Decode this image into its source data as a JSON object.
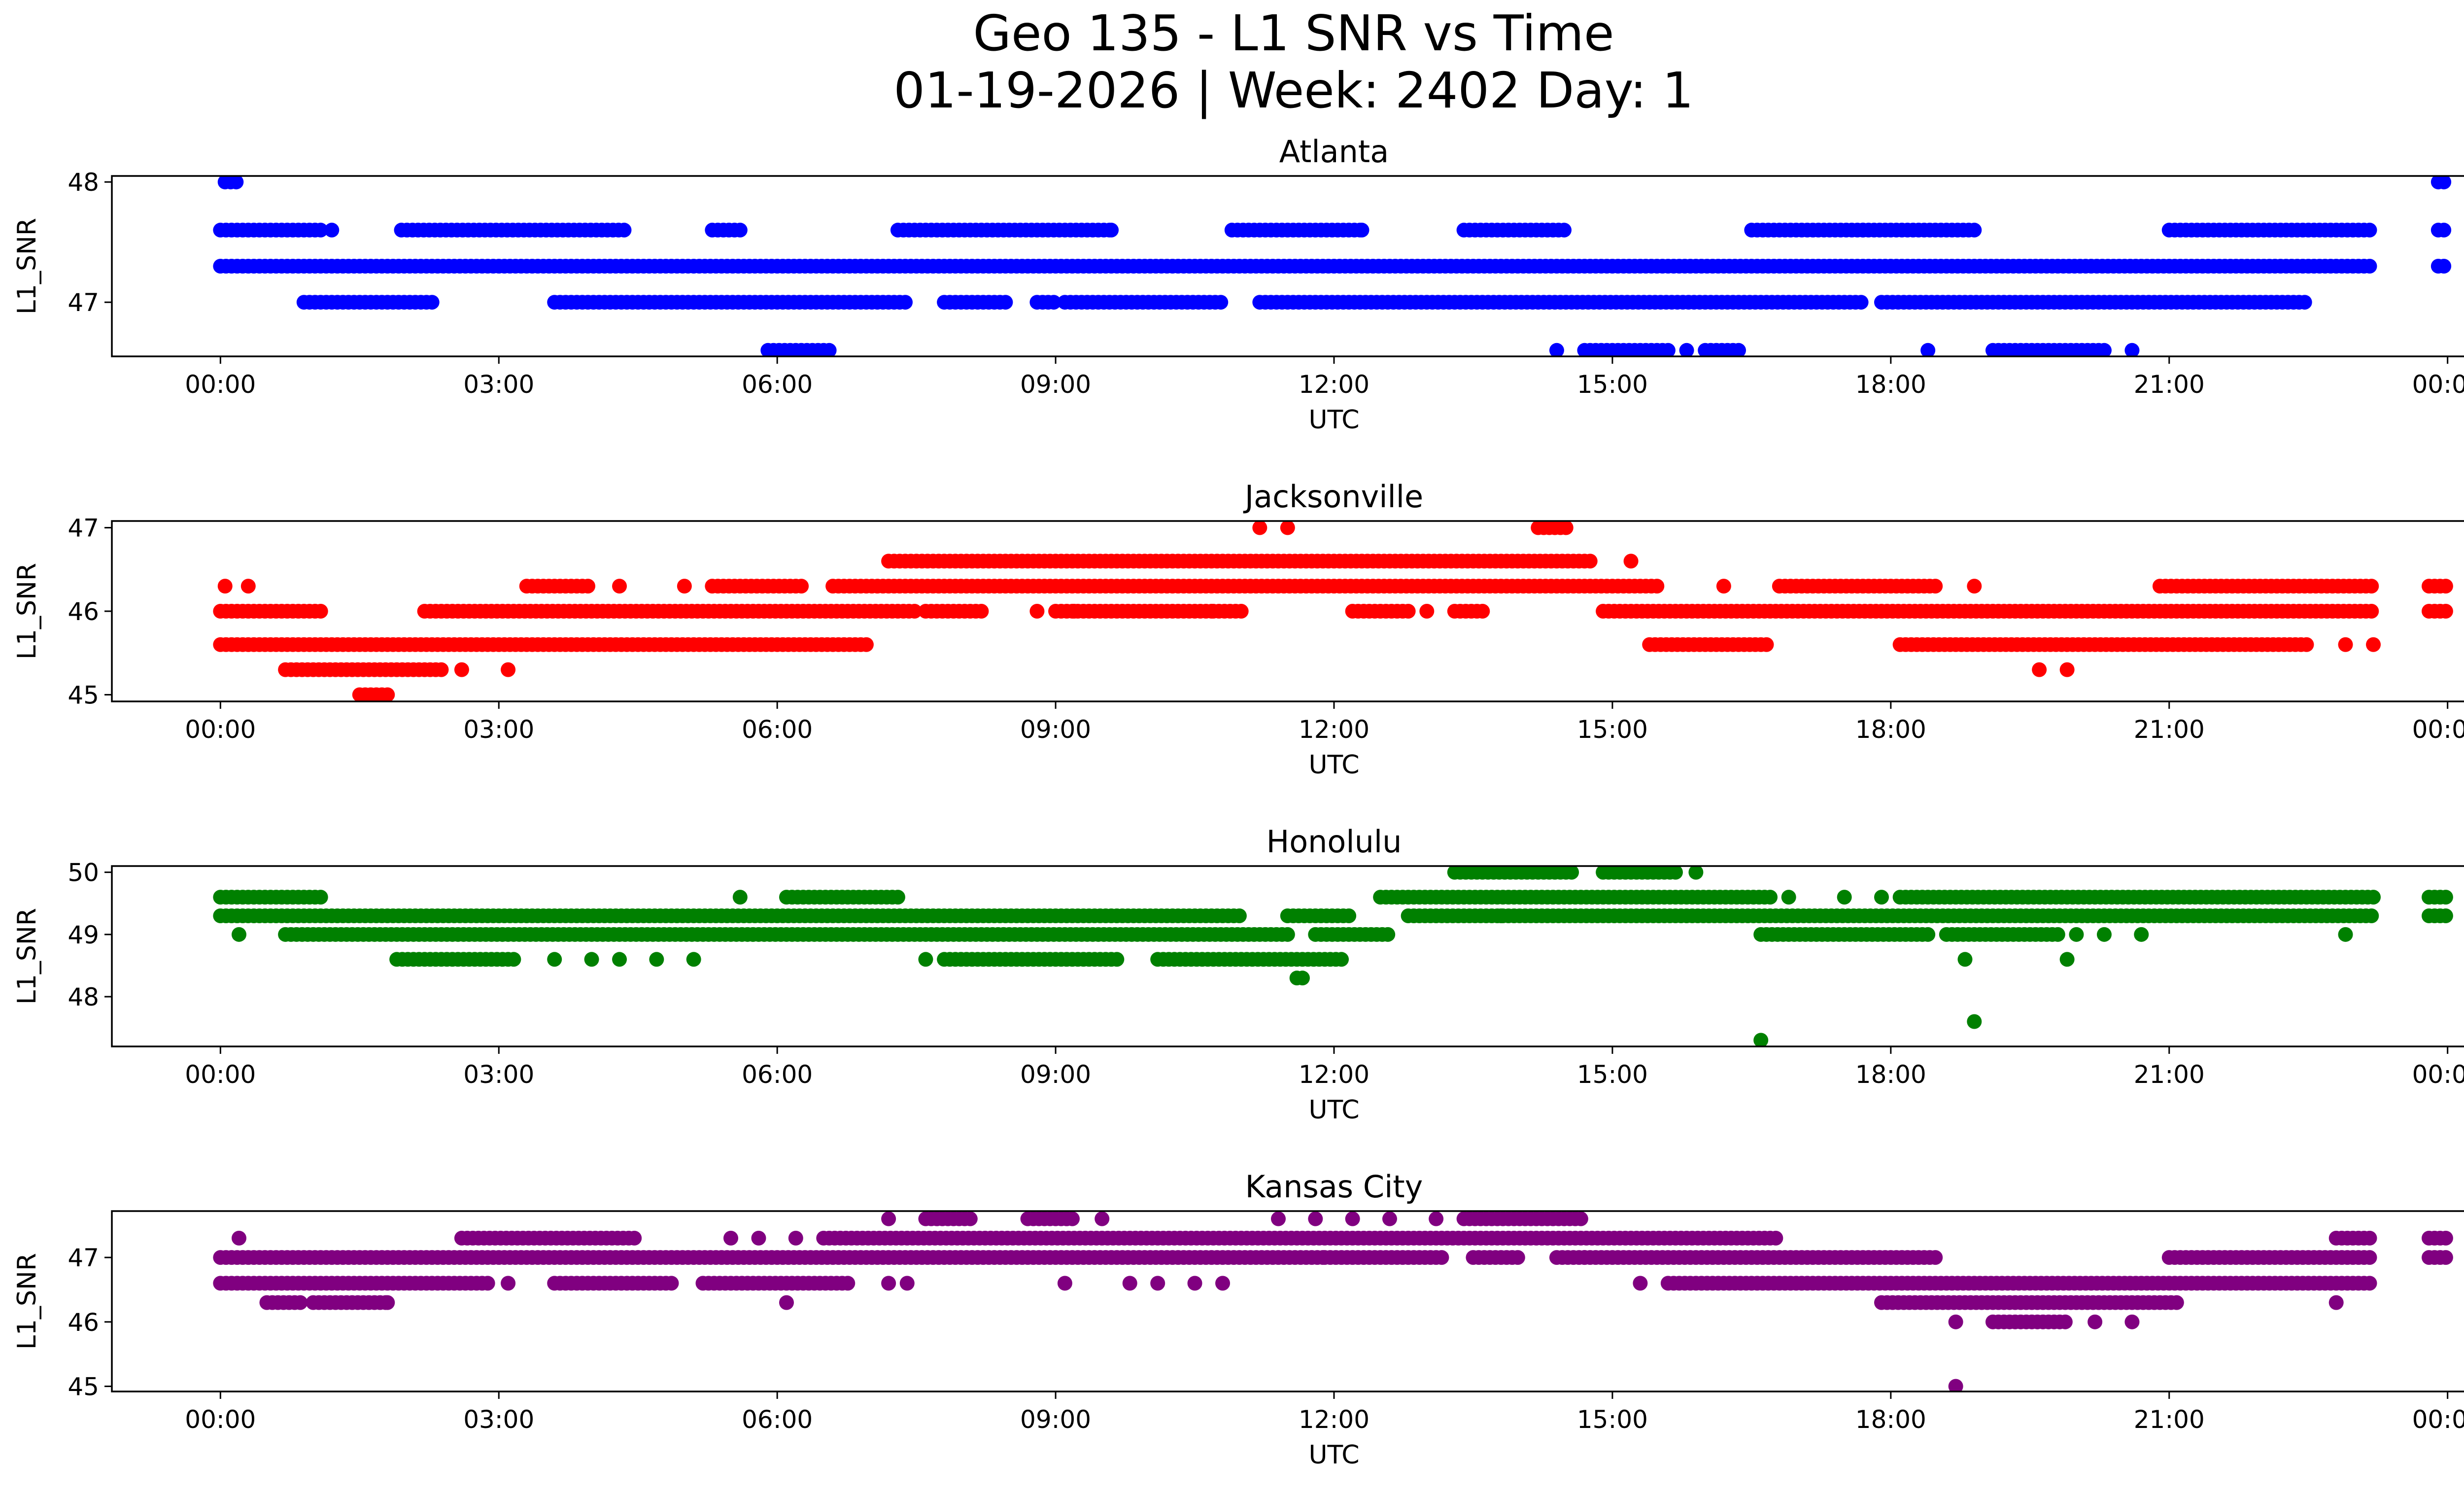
{
  "figure": {
    "title_line1": "Geo 135 - L1 SNR vs Time",
    "title_line2": "01-19-2026 | Week: 2402 Day: 1"
  },
  "chart_data": [
    {
      "type": "scatter",
      "title": "Atlanta",
      "xlabel": "UTC",
      "ylabel": "L1_SNR",
      "color": "#0000ff",
      "xlim_hours": [
        -1.17,
        25.17
      ],
      "ylim": [
        46.55,
        48.05
      ],
      "yticks": [
        47,
        48
      ],
      "ytick_labels": [
        "47",
        "48"
      ],
      "xticks_hours": [
        0,
        3,
        6,
        9,
        12,
        15,
        18,
        21,
        24
      ],
      "xtick_labels": [
        "00:00",
        "03:00",
        "06:00",
        "09:00",
        "12:00",
        "15:00",
        "18:00",
        "21:00",
        "00:00"
      ],
      "runs": [
        {
          "y": 47.6,
          "ranges": [
            [
              0,
              1.1
            ],
            [
              1.95,
              4.4
            ],
            [
              5.3,
              5.6
            ],
            [
              7.3,
              9.6
            ],
            [
              10.9,
              12.3
            ],
            [
              13.4,
              14.5
            ],
            [
              16.5,
              18.9
            ],
            [
              21.0,
              23.2
            ],
            [
              23.9,
              24.0
            ]
          ]
        },
        {
          "y": 47.3,
          "ranges": [
            [
              0,
              23.2
            ],
            [
              23.9,
              24.0
            ]
          ]
        },
        {
          "y": 47.0,
          "ranges": [
            [
              0.9,
              2.3
            ],
            [
              3.6,
              7.4
            ],
            [
              7.8,
              8.5
            ],
            [
              8.8,
              9.0
            ],
            [
              9.1,
              10.8
            ],
            [
              11.2,
              17.7
            ],
            [
              17.9,
              22.5
            ]
          ]
        },
        {
          "y": 46.6,
          "ranges": [
            [
              5.9,
              6.6
            ],
            [
              14.7,
              15.6
            ],
            [
              16.0,
              16.4
            ],
            [
              19.1,
              20.3
            ]
          ]
        },
        {
          "y": 48.0,
          "ranges": [
            [
              0.05,
              0.2
            ],
            [
              23.9,
              24.0
            ]
          ]
        }
      ],
      "points": [
        [
          1.2,
          47.6
        ],
        [
          17.7,
          47.6
        ],
        [
          14.4,
          46.6
        ],
        [
          15.8,
          46.6
        ],
        [
          18.4,
          46.6
        ],
        [
          20.6,
          46.6
        ],
        [
          9.6,
          47.6
        ],
        [
          12.3,
          47.6
        ]
      ]
    },
    {
      "type": "scatter",
      "title": "Jacksonville",
      "xlabel": "UTC",
      "ylabel": "L1_SNR",
      "color": "#ff0000",
      "xlim_hours": [
        -1.17,
        25.17
      ],
      "ylim": [
        44.92,
        47.08
      ],
      "yticks": [
        45,
        46,
        47
      ],
      "ytick_labels": [
        "45",
        "46",
        "47"
      ],
      "xticks_hours": [
        0,
        3,
        6,
        9,
        12,
        15,
        18,
        21,
        24
      ],
      "xtick_labels": [
        "00:00",
        "03:00",
        "06:00",
        "09:00",
        "12:00",
        "15:00",
        "18:00",
        "21:00",
        "00:00"
      ],
      "runs": [
        {
          "y": 46.6,
          "ranges": [
            [
              7.2,
              14.8
            ]
          ]
        },
        {
          "y": 46.3,
          "ranges": [
            [
              3.3,
              4.0
            ],
            [
              5.3,
              6.3
            ],
            [
              6.6,
              15.5
            ],
            [
              16.8,
              18.5
            ],
            [
              20.9,
              23.2
            ],
            [
              23.8,
              24.0
            ]
          ]
        },
        {
          "y": 46.0,
          "ranges": [
            [
              0,
              1.1
            ],
            [
              2.2,
              7.5
            ],
            [
              7.6,
              8.2
            ],
            [
              9.0,
              10.7
            ],
            [
              10.7,
              11.0
            ],
            [
              12.2,
              12.8
            ],
            [
              13.3,
              13.6
            ],
            [
              14.9,
              23.2
            ],
            [
              23.8,
              24.0
            ]
          ]
        },
        {
          "y": 45.6,
          "ranges": [
            [
              0,
              7.0
            ],
            [
              15.4,
              16.7
            ],
            [
              18.1,
              22.5
            ]
          ]
        },
        {
          "y": 45.3,
          "ranges": [
            [
              0.7,
              2.4
            ]
          ]
        },
        {
          "y": 45.0,
          "ranges": [
            [
              1.5,
              1.8
            ]
          ]
        },
        {
          "y": 47.0,
          "ranges": [
            [
              14.2,
              14.5
            ]
          ]
        }
      ],
      "points": [
        [
          0.05,
          46.3
        ],
        [
          0.3,
          46.3
        ],
        [
          4.3,
          46.3
        ],
        [
          5.0,
          46.3
        ],
        [
          2.6,
          45.3
        ],
        [
          3.1,
          45.3
        ],
        [
          8.8,
          46.0
        ],
        [
          9.2,
          46.0
        ],
        [
          16.2,
          46.3
        ],
        [
          18.9,
          46.3
        ],
        [
          11.2,
          47.0
        ],
        [
          11.5,
          47.0
        ],
        [
          22.9,
          45.6
        ],
        [
          23.2,
          45.6
        ],
        [
          19.6,
          45.3
        ],
        [
          19.9,
          45.3
        ],
        [
          13.0,
          46.0
        ],
        [
          15.2,
          46.6
        ]
      ]
    },
    {
      "type": "scatter",
      "title": "Honolulu",
      "xlabel": "UTC",
      "ylabel": "L1_SNR",
      "color": "#008000",
      "xlim_hours": [
        -1.17,
        25.17
      ],
      "ylim": [
        47.2,
        50.1
      ],
      "yticks": [
        48,
        49,
        50
      ],
      "ytick_labels": [
        "48",
        "49",
        "50"
      ],
      "xticks_hours": [
        0,
        3,
        6,
        9,
        12,
        15,
        18,
        21,
        24
      ],
      "xtick_labels": [
        "00:00",
        "03:00",
        "06:00",
        "09:00",
        "12:00",
        "15:00",
        "18:00",
        "21:00",
        "00:00"
      ],
      "runs": [
        {
          "y": 50.0,
          "ranges": [
            [
              13.3,
              14.6
            ],
            [
              14.9,
              15.7
            ]
          ]
        },
        {
          "y": 49.6,
          "ranges": [
            [
              0,
              1.1
            ],
            [
              6.1,
              7.3
            ],
            [
              12.5,
              16.7
            ],
            [
              18.1,
              23.2
            ],
            [
              23.8,
              24.0
            ]
          ]
        },
        {
          "y": 49.3,
          "ranges": [
            [
              0,
              11.0
            ],
            [
              11.5,
              12.2
            ],
            [
              12.8,
              23.2
            ],
            [
              23.8,
              24.0
            ]
          ]
        },
        {
          "y": 49.0,
          "ranges": [
            [
              0.7,
              11.5
            ],
            [
              11.8,
              12.6
            ],
            [
              16.6,
              18.4
            ],
            [
              18.6,
              19.8
            ]
          ]
        },
        {
          "y": 48.6,
          "ranges": [
            [
              1.9,
              3.2
            ],
            [
              7.8,
              9.7
            ],
            [
              10.1,
              12.1
            ]
          ]
        },
        {
          "y": 48.3,
          "ranges": [
            [
              11.6,
              11.7
            ]
          ]
        }
      ],
      "points": [
        [
          5.6,
          49.6
        ],
        [
          16.9,
          49.6
        ],
        [
          17.5,
          49.6
        ],
        [
          17.9,
          49.6
        ],
        [
          3.6,
          48.6
        ],
        [
          4.0,
          48.6
        ],
        [
          4.3,
          48.6
        ],
        [
          4.7,
          48.6
        ],
        [
          5.1,
          48.6
        ],
        [
          7.6,
          48.6
        ],
        [
          18.8,
          48.6
        ],
        [
          19.9,
          48.6
        ],
        [
          16.6,
          47.3
        ],
        [
          18.9,
          47.6
        ],
        [
          20.0,
          49.0
        ],
        [
          20.3,
          49.0
        ],
        [
          20.7,
          49.0
        ],
        [
          22.9,
          49.0
        ],
        [
          0.2,
          49.0
        ],
        [
          13.8,
          49.3
        ],
        [
          15.9,
          50.0
        ]
      ]
    },
    {
      "type": "scatter",
      "title": "Kansas City",
      "xlabel": "UTC",
      "ylabel": "L1_SNR",
      "color": "#800080",
      "xlim_hours": [
        -1.17,
        25.17
      ],
      "ylim": [
        44.92,
        47.72
      ],
      "yticks": [
        45,
        46,
        47
      ],
      "ytick_labels": [
        "45",
        "46",
        "47"
      ],
      "xticks_hours": [
        0,
        3,
        6,
        9,
        12,
        15,
        18,
        21,
        24
      ],
      "xtick_labels": [
        "00:00",
        "03:00",
        "06:00",
        "09:00",
        "12:00",
        "15:00",
        "18:00",
        "21:00",
        "00:00"
      ],
      "runs": [
        {
          "y": 47.6,
          "ranges": [
            [
              7.6,
              8.1
            ],
            [
              8.7,
              9.2
            ],
            [
              13.4,
              14.7
            ]
          ]
        },
        {
          "y": 47.3,
          "ranges": [
            [
              2.6,
              4.5
            ],
            [
              6.5,
              16.8
            ],
            [
              22.8,
              23.2
            ],
            [
              23.8,
              24.0
            ]
          ]
        },
        {
          "y": 47.0,
          "ranges": [
            [
              0,
              11.9
            ],
            [
              11.9,
              13.2
            ],
            [
              13.5,
              14.0
            ],
            [
              14.4,
              18.5
            ],
            [
              21.0,
              23.2
            ],
            [
              23.8,
              24.0
            ]
          ]
        },
        {
          "y": 46.6,
          "ranges": [
            [
              0,
              2.9
            ],
            [
              3.6,
              4.9
            ],
            [
              5.2,
              6.8
            ],
            [
              15.6,
              23.2
            ]
          ]
        },
        {
          "y": 46.3,
          "ranges": [
            [
              0.5,
              0.9
            ],
            [
              1.0,
              1.8
            ],
            [
              17.9,
              21.1
            ]
          ]
        },
        {
          "y": 46.0,
          "ranges": [
            [
              19.1,
              19.9
            ]
          ]
        }
      ],
      "points": [
        [
          0.2,
          47.3
        ],
        [
          5.5,
          47.3
        ],
        [
          5.8,
          47.3
        ],
        [
          6.2,
          47.3
        ],
        [
          7.2,
          47.6
        ],
        [
          9.5,
          47.6
        ],
        [
          11.4,
          47.6
        ],
        [
          11.8,
          47.6
        ],
        [
          12.2,
          47.6
        ],
        [
          12.6,
          47.6
        ],
        [
          13.1,
          47.6
        ],
        [
          1.8,
          46.3
        ],
        [
          6.1,
          46.3
        ],
        [
          7.2,
          46.6
        ],
        [
          7.4,
          46.6
        ],
        [
          9.1,
          46.6
        ],
        [
          9.8,
          46.6
        ],
        [
          10.1,
          46.6
        ],
        [
          10.5,
          46.6
        ],
        [
          10.8,
          46.6
        ],
        [
          3.1,
          46.6
        ],
        [
          14.7,
          47.0
        ],
        [
          15.3,
          46.6
        ],
        [
          18.7,
          46.0
        ],
        [
          20.2,
          46.0
        ],
        [
          20.6,
          46.0
        ],
        [
          22.8,
          46.3
        ],
        [
          18.7,
          45.0
        ]
      ]
    }
  ]
}
